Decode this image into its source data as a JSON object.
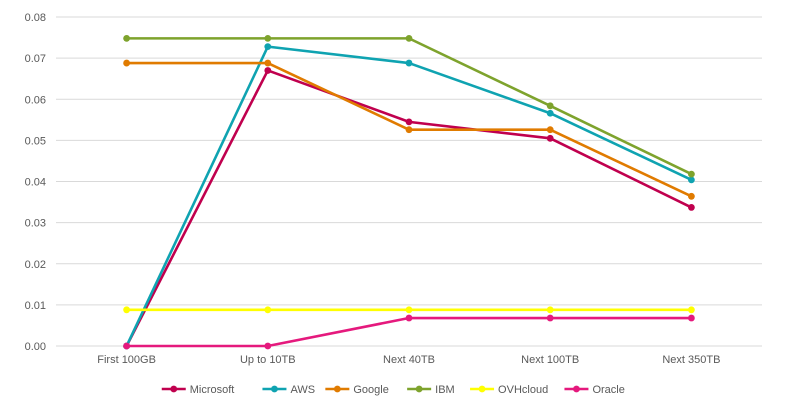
{
  "chart_data": {
    "type": "line",
    "title": "",
    "xlabel": "",
    "ylabel": "",
    "categories": [
      "First 100GB",
      "Up to 10TB",
      "Next 40TB",
      "Next 100TB",
      "Next 350TB"
    ],
    "ylim": [
      0,
      0.08
    ],
    "yticks": [
      "0.00",
      "0.01",
      "0.02",
      "0.03",
      "0.04",
      "0.05",
      "0.06",
      "0.07",
      "0.08"
    ],
    "grid": true,
    "legend": "bottom",
    "series": [
      {
        "name": "Microsoft",
        "color": "#c0004e",
        "values": [
          0,
          0.067,
          0.0545,
          0.0505,
          0.0337
        ]
      },
      {
        "name": "AWS",
        "color": "#0fa3b1",
        "values": [
          0,
          0.0728,
          0.0688,
          0.0566,
          0.0404
        ]
      },
      {
        "name": "Google",
        "color": "#e07b00",
        "values": [
          0.0688,
          0.0688,
          0.0526,
          0.0526,
          0.0364
        ]
      },
      {
        "name": "IBM",
        "color": "#7ea32d",
        "values": [
          0.0748,
          0.0748,
          0.0748,
          0.0584,
          0.0418
        ]
      },
      {
        "name": "OVHcloud",
        "color": "#ffff00",
        "values": [
          0.0088,
          0.0088,
          0.0088,
          0.0088,
          0.0088
        ]
      },
      {
        "name": "Oracle",
        "color": "#e5197d",
        "values": [
          0,
          0,
          0.0068,
          0.0068,
          0.0068
        ]
      }
    ]
  }
}
